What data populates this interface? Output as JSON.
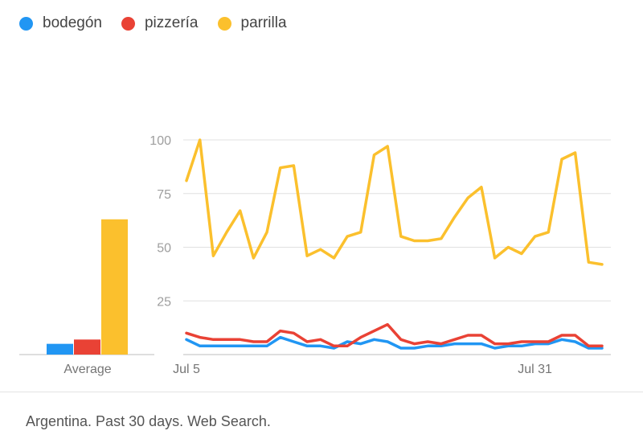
{
  "legend": [
    {
      "label": "bodegón",
      "color": "#2196f3"
    },
    {
      "label": "pizzería",
      "color": "#e94235"
    },
    {
      "label": "parrilla",
      "color": "#fbc02d"
    }
  ],
  "footer": {
    "text": "Argentina. Past 30 days. Web Search."
  },
  "chart_data": {
    "type": "line",
    "average_label": "Average",
    "averages": [
      5,
      7,
      63
    ],
    "x_ticks": [
      {
        "label": "Jul 5",
        "index": 0
      },
      {
        "label": "Jul 31",
        "index": 26
      }
    ],
    "ylim": [
      0,
      100
    ],
    "y_ticks": [
      25,
      50,
      75,
      100
    ],
    "grid": true,
    "legend_position": "top-left",
    "series": [
      {
        "name": "bodegón",
        "color": "#2196f3",
        "values": [
          7,
          4,
          4,
          4,
          4,
          4,
          4,
          8,
          6,
          4,
          4,
          3,
          6,
          5,
          7,
          6,
          3,
          3,
          4,
          4,
          5,
          5,
          5,
          3,
          4,
          4,
          5,
          5,
          7,
          6,
          3,
          3
        ]
      },
      {
        "name": "pizzería",
        "color": "#e94235",
        "values": [
          10,
          8,
          7,
          7,
          7,
          6,
          6,
          11,
          10,
          6,
          7,
          4,
          4,
          8,
          11,
          14,
          7,
          5,
          6,
          5,
          7,
          9,
          9,
          5,
          5,
          6,
          6,
          6,
          9,
          9,
          4,
          4
        ]
      },
      {
        "name": "parrilla",
        "color": "#fbc02d",
        "values": [
          81,
          100,
          46,
          57,
          67,
          45,
          57,
          87,
          88,
          46,
          49,
          45,
          55,
          57,
          93,
          97,
          55,
          53,
          53,
          54,
          64,
          73,
          78,
          45,
          50,
          47,
          55,
          57,
          91,
          94,
          43,
          42
        ]
      }
    ]
  }
}
